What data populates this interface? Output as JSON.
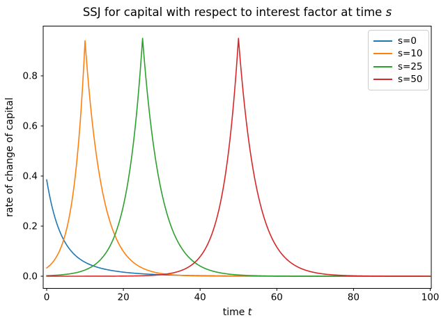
{
  "figure": {
    "title_prefix": "SSJ for capital with respect to interest factor at time ",
    "title_var": "s",
    "xlabel_prefix": "time ",
    "xlabel_var": "t",
    "ylabel": "rate of change of capital"
  },
  "chart_data": {
    "type": "line",
    "title": "SSJ for capital with respect to interest factor at time s",
    "xlabel": "time t",
    "ylabel": "rate of change of capital",
    "xlim": [
      -1,
      100.3
    ],
    "ylim": [
      -0.048,
      0.998
    ],
    "grid": false,
    "legend_position": "upper right",
    "xticks": [
      {
        "value": 0,
        "label": "0"
      },
      {
        "value": 20,
        "label": "20"
      },
      {
        "value": 40,
        "label": "40"
      },
      {
        "value": 60,
        "label": "60"
      },
      {
        "value": 80,
        "label": "80"
      },
      {
        "value": 100,
        "label": "100"
      }
    ],
    "yticks": [
      {
        "value": 0.0,
        "label": "0.0"
      },
      {
        "value": 0.2,
        "label": "0.2"
      },
      {
        "value": 0.4,
        "label": "0.4"
      },
      {
        "value": 0.6,
        "label": "0.6"
      },
      {
        "value": 0.8,
        "label": "0.8"
      }
    ],
    "sample_t": [
      0,
      5,
      10,
      15,
      20,
      25,
      30,
      35,
      40,
      45,
      50,
      55,
      60,
      65,
      70,
      75,
      80,
      85,
      90,
      95,
      100
    ],
    "series": [
      {
        "name": "s=0",
        "color": "#1f77b4",
        "s": 0,
        "model": "sum_exp_decay",
        "components": [
          {
            "amp": 0.27,
            "rate": 0.3
          },
          {
            "amp": 0.115,
            "rate": 0.1
          }
        ],
        "peak": {
          "t": 0,
          "value": 0.385
        },
        "sample_values": [
          0.385,
          0.13,
          0.056,
          0.029,
          0.016,
          0.01,
          0.006,
          0.003,
          0.002,
          0.001,
          0.001,
          0.0,
          0.0,
          0.0,
          0.0,
          0.0,
          0.0,
          0.0,
          0.0,
          0.0,
          0.0
        ]
      },
      {
        "name": "s=10",
        "color": "#ff7f0e",
        "s": 10,
        "model": "tent_exp",
        "peak": {
          "t": 10,
          "value": 0.94
        },
        "rise_rate": 0.335,
        "decay_rate": 0.225,
        "sample_values": [
          0.033,
          0.176,
          0.94,
          0.305,
          0.099,
          0.032,
          0.01,
          0.003,
          0.001,
          0.0,
          0.0,
          0.0,
          0.0,
          0.0,
          0.0,
          0.0,
          0.0,
          0.0,
          0.0,
          0.0,
          0.0
        ]
      },
      {
        "name": "s=25",
        "color": "#2ca02c",
        "s": 25,
        "model": "tent_exp",
        "peak": {
          "t": 25,
          "value": 0.95
        },
        "rise_rate": 0.243,
        "decay_rate": 0.21,
        "sample_values": [
          0.002,
          0.007,
          0.025,
          0.084,
          0.282,
          0.95,
          0.333,
          0.116,
          0.041,
          0.014,
          0.005,
          0.002,
          0.001,
          0.0,
          0.0,
          0.0,
          0.0,
          0.0,
          0.0,
          0.0,
          0.0
        ]
      },
      {
        "name": "s=50",
        "color": "#d62728",
        "s": 50,
        "model": "tent_exp",
        "peak": {
          "t": 50,
          "value": 0.95
        },
        "rise_rate": 0.25,
        "decay_rate": 0.21,
        "sample_values": [
          0.0,
          0.0,
          0.0,
          0.0,
          0.001,
          0.002,
          0.006,
          0.022,
          0.078,
          0.272,
          0.95,
          0.333,
          0.116,
          0.041,
          0.014,
          0.005,
          0.002,
          0.001,
          0.0,
          0.0,
          0.0
        ]
      }
    ]
  }
}
